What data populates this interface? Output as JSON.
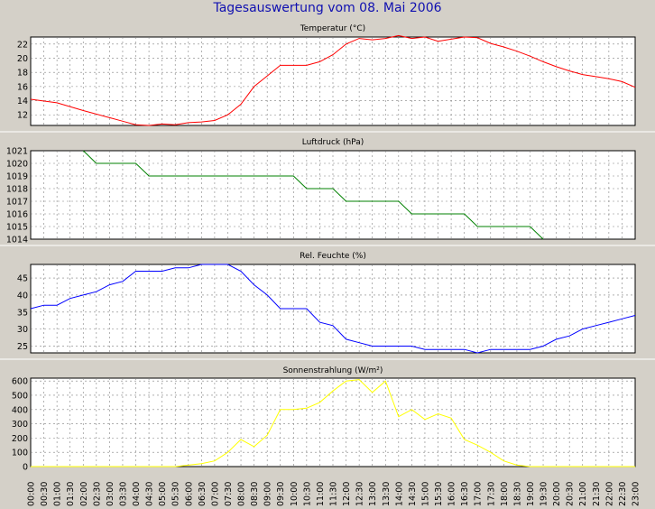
{
  "title": "Tagesauswertung vom 08. Mai 2006",
  "colors": {
    "background": "#d4d0c8",
    "plot_background": "#ffffff",
    "grid": "#808080",
    "title": "#1010b0",
    "temperature": "#ff0000",
    "pressure": "#008000",
    "humidity": "#0000ff",
    "radiation": "#ffff00"
  },
  "x_ticks": [
    "00:00",
    "00:30",
    "01:00",
    "01:30",
    "02:00",
    "02:30",
    "03:00",
    "03:30",
    "04:00",
    "04:30",
    "05:00",
    "05:30",
    "06:00",
    "06:30",
    "07:00",
    "07:30",
    "08:00",
    "08:30",
    "09:00",
    "09:30",
    "10:00",
    "10:30",
    "11:00",
    "11:30",
    "12:00",
    "12:30",
    "13:00",
    "13:30",
    "14:00",
    "14:30",
    "15:00",
    "15:30",
    "16:00",
    "16:30",
    "17:00",
    "17:30",
    "18:00",
    "18:30",
    "19:00",
    "19:30",
    "20:00",
    "20:30",
    "21:00",
    "21:30",
    "22:00",
    "22:30",
    "23:00"
  ],
  "chart_data": [
    {
      "type": "line",
      "title": "Temperatur (°C)",
      "x_range": [
        "00:00",
        "23:00"
      ],
      "ylim": [
        10.5,
        23
      ],
      "y_ticks": [
        12,
        14,
        16,
        18,
        20,
        22
      ],
      "grid": true,
      "series": [
        {
          "color": "#ff0000",
          "x": [
            "00:00",
            "01:00",
            "02:00",
            "03:00",
            "03:30",
            "04:00",
            "04:30",
            "05:00",
            "05:30",
            "06:00",
            "06:30",
            "07:00",
            "07:30",
            "08:00",
            "08:30",
            "09:00",
            "09:30",
            "10:00",
            "10:30",
            "11:00",
            "11:30",
            "12:00",
            "12:30",
            "13:00",
            "13:30",
            "14:00",
            "14:30",
            "15:00",
            "15:30",
            "16:00",
            "16:30",
            "17:00",
            "17:30",
            "18:00",
            "18:30",
            "19:00",
            "19:30",
            "20:00",
            "20:30",
            "21:00",
            "21:30",
            "22:00",
            "22:30",
            "23:00"
          ],
          "values": [
            14.2,
            13.7,
            12.6,
            11.6,
            11.1,
            10.6,
            10.5,
            10.7,
            10.6,
            10.9,
            11.0,
            11.2,
            12.0,
            13.5,
            16.0,
            17.5,
            19.0,
            19.0,
            19.0,
            19.5,
            20.5,
            22.0,
            22.8,
            22.6,
            22.8,
            23.2,
            22.8,
            23.0,
            22.4,
            22.7,
            23.0,
            22.9,
            22.1,
            21.6,
            21.0,
            20.3,
            19.5,
            18.8,
            18.2,
            17.7,
            17.4,
            17.1,
            16.7,
            15.9
          ]
        }
      ]
    },
    {
      "type": "line",
      "title": "Luftdruck (hPa)",
      "x_range": [
        "00:00",
        "23:00"
      ],
      "ylim": [
        1014,
        1021
      ],
      "y_ticks": [
        1014,
        1015,
        1016,
        1017,
        1018,
        1019,
        1020,
        1021
      ],
      "grid": true,
      "series": [
        {
          "color": "#008000",
          "x": [
            "02:00",
            "02:30",
            "04:00",
            "04:30",
            "10:00",
            "10:30",
            "11:30",
            "12:00",
            "14:00",
            "14:30",
            "16:30",
            "17:00",
            "19:00",
            "19:30"
          ],
          "values": [
            1021,
            1020,
            1020,
            1019,
            1019,
            1018,
            1018,
            1017,
            1017,
            1016,
            1016,
            1015,
            1015,
            1014
          ]
        }
      ]
    },
    {
      "type": "line",
      "title": "Rel. Feuchte (%)",
      "x_range": [
        "00:00",
        "23:00"
      ],
      "ylim": [
        23,
        49
      ],
      "y_ticks": [
        25,
        30,
        35,
        40,
        45
      ],
      "grid": true,
      "series": [
        {
          "color": "#0000ff",
          "x": [
            "00:00",
            "00:30",
            "01:00",
            "01:30",
            "02:00",
            "02:30",
            "03:00",
            "03:30",
            "04:00",
            "04:30",
            "05:00",
            "05:30",
            "06:00",
            "06:30",
            "07:00",
            "07:30",
            "08:00",
            "08:30",
            "09:00",
            "09:30",
            "10:00",
            "10:30",
            "11:00",
            "11:30",
            "12:00",
            "12:30",
            "13:00",
            "13:30",
            "14:00",
            "14:30",
            "15:00",
            "15:30",
            "16:00",
            "16:30",
            "17:00",
            "17:30",
            "18:00",
            "18:30",
            "19:00",
            "19:30",
            "20:00",
            "20:30",
            "21:00",
            "21:30",
            "22:00",
            "22:30",
            "23:00"
          ],
          "values": [
            36,
            37,
            37,
            39,
            40,
            41,
            43,
            44,
            47,
            47,
            47,
            48,
            48,
            49,
            49,
            49,
            47,
            43,
            40,
            36,
            36,
            36,
            32,
            31,
            27,
            26,
            25,
            25,
            25,
            25,
            24,
            24,
            24,
            24,
            23,
            24,
            24,
            24,
            24,
            25,
            27,
            28,
            30,
            31,
            32,
            33,
            34
          ]
        }
      ]
    },
    {
      "type": "line",
      "title": "Sonnenstrahlung (W/m²)",
      "x_range": [
        "00:00",
        "23:00"
      ],
      "ylim": [
        0,
        620
      ],
      "y_ticks": [
        0,
        100,
        200,
        300,
        400,
        500,
        600
      ],
      "grid": true,
      "series": [
        {
          "color": "#ffff00",
          "x": [
            "00:00",
            "04:30",
            "05:00",
            "05:30",
            "06:00",
            "06:30",
            "07:00",
            "07:30",
            "08:00",
            "08:30",
            "09:00",
            "09:30",
            "10:00",
            "10:30",
            "11:00",
            "11:30",
            "12:00",
            "12:30",
            "13:00",
            "13:30",
            "14:00",
            "14:30",
            "15:00",
            "15:30",
            "16:00",
            "16:30",
            "17:00",
            "17:30",
            "18:00",
            "18:30",
            "19:00",
            "19:30",
            "20:00",
            "20:30",
            "21:00",
            "23:00"
          ],
          "values": [
            0,
            0,
            0,
            0,
            10,
            20,
            40,
            100,
            190,
            140,
            220,
            400,
            400,
            410,
            450,
            530,
            600,
            610,
            520,
            600,
            350,
            400,
            330,
            370,
            340,
            190,
            150,
            100,
            40,
            10,
            0,
            0,
            0,
            0,
            0,
            0
          ]
        }
      ]
    }
  ]
}
